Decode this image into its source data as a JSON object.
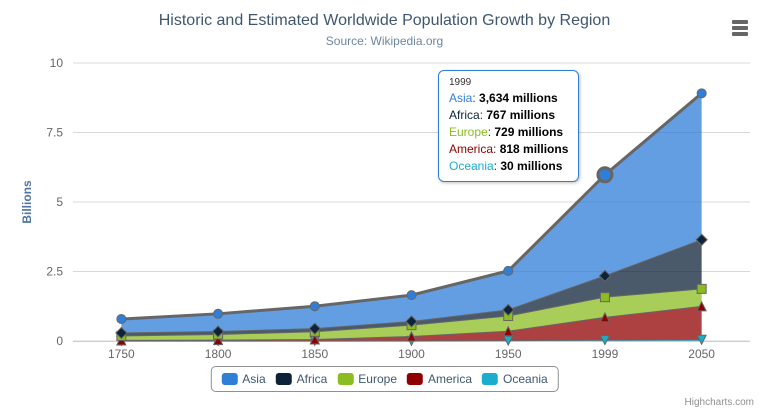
{
  "chart": {
    "title": "Historic and Estimated Worldwide Population Growth by Region",
    "subtitle": "Source: Wikipedia.org",
    "y_axis_title": "Billions",
    "credits": "Highcharts.com",
    "export_icon": "hamburger-menu-icon",
    "background_color": "#ffffff",
    "grid_color": "#d8d8d8",
    "axis_line_color": "#c0d0e0",
    "axis_label_color": "#666666",
    "series_line_color": "#666666"
  },
  "tooltip": {
    "header": "1999",
    "border_color": "#2f7ed8",
    "rows": [
      {
        "name": "Asia",
        "value": "3,634 millions",
        "color": "#2f7ed8"
      },
      {
        "name": "Africa",
        "value": "767 millions",
        "color": "#0d233a"
      },
      {
        "name": "Europe",
        "value": "729 millions",
        "color": "#8bbc21"
      },
      {
        "name": "America",
        "value": "818 millions",
        "color": "#910000"
      },
      {
        "name": "Oceania",
        "value": "30 millions",
        "color": "#1aadce"
      }
    ]
  },
  "chart_data": {
    "type": "area",
    "stacking": "normal",
    "title": "Historic and Estimated Worldwide Population Growth by Region",
    "subtitle": "Source: Wikipedia.org",
    "xlabel": "",
    "ylabel": "Billions",
    "values_unit": "millions",
    "ylim": [
      0,
      10
    ],
    "yticks": [
      0,
      2.5,
      5,
      7.5,
      10
    ],
    "categories": [
      "1750",
      "1800",
      "1850",
      "1900",
      "1950",
      "1999",
      "2050"
    ],
    "series": [
      {
        "name": "Asia",
        "color": "#2f7ed8",
        "marker": "circle",
        "values": [
          502,
          635,
          809,
          947,
          1402,
          3634,
          5268
        ]
      },
      {
        "name": "Africa",
        "color": "#0d233a",
        "marker": "diamond",
        "values": [
          106,
          107,
          111,
          133,
          221,
          767,
          1766
        ]
      },
      {
        "name": "Europe",
        "color": "#8bbc21",
        "marker": "square",
        "values": [
          163,
          203,
          276,
          408,
          547,
          729,
          628
        ]
      },
      {
        "name": "America",
        "color": "#910000",
        "marker": "triangle",
        "values": [
          18,
          31,
          54,
          156,
          339,
          818,
          1201
        ]
      },
      {
        "name": "Oceania",
        "color": "#1aadce",
        "marker": "triangle-down",
        "values": [
          2,
          2,
          2,
          6,
          13,
          30,
          46
        ]
      }
    ],
    "stack_order_bottom_to_top": [
      "Oceania",
      "America",
      "Europe",
      "Africa",
      "Asia"
    ],
    "hovered_point": {
      "series": "Asia",
      "category": "1999"
    },
    "grid": true,
    "legend_position": "bottom-center",
    "fill_opacity": 0.75
  }
}
